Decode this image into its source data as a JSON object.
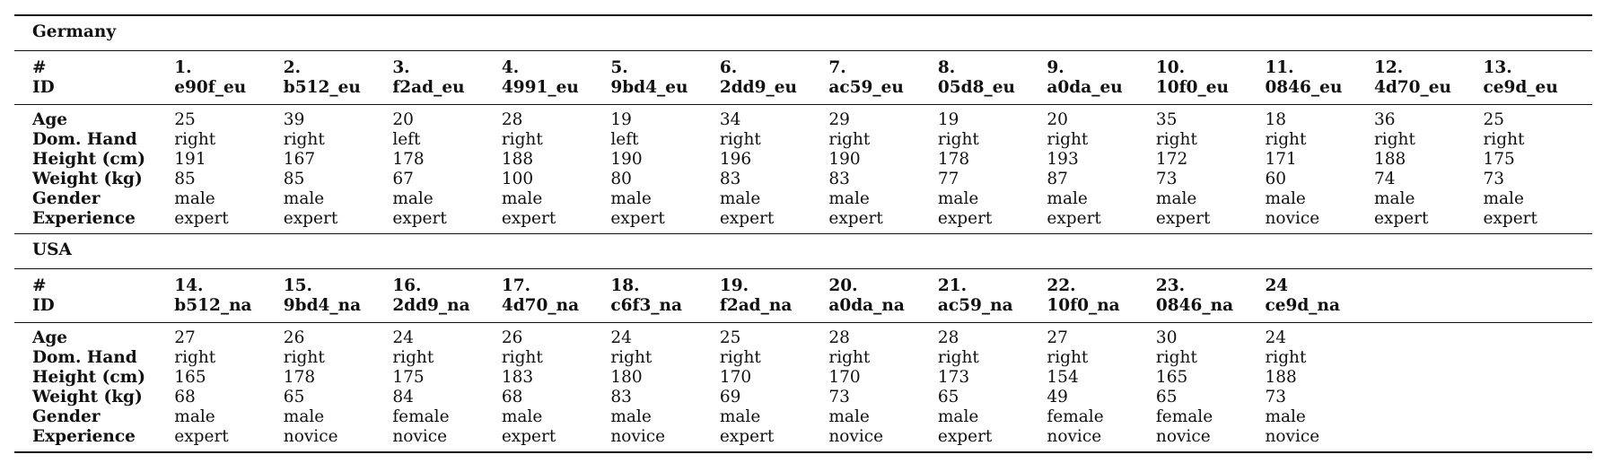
{
  "row_labels": {
    "number": "#",
    "id": "ID",
    "age": "Age",
    "dom_hand": "Dom. Hand",
    "height": "Height (cm)",
    "weight": "Weight (kg)",
    "gender": "Gender",
    "experience": "Experience"
  },
  "sections": [
    {
      "title": "Germany",
      "participants": [
        {
          "num": "1.",
          "id": "e90f_eu",
          "age": "25",
          "hand": "right",
          "height": "191",
          "weight": "85",
          "gender": "male",
          "experience": "expert"
        },
        {
          "num": "2.",
          "id": "b512_eu",
          "age": "39",
          "hand": "right",
          "height": "167",
          "weight": "85",
          "gender": "male",
          "experience": "expert"
        },
        {
          "num": "3.",
          "id": "f2ad_eu",
          "age": "20",
          "hand": "left",
          "height": "178",
          "weight": "67",
          "gender": "male",
          "experience": "expert"
        },
        {
          "num": "4.",
          "id": "4991_eu",
          "age": "28",
          "hand": "right",
          "height": "188",
          "weight": "100",
          "gender": "male",
          "experience": "expert"
        },
        {
          "num": "5.",
          "id": "9bd4_eu",
          "age": "19",
          "hand": "left",
          "height": "190",
          "weight": "80",
          "gender": "male",
          "experience": "expert"
        },
        {
          "num": "6.",
          "id": "2dd9_eu",
          "age": "34",
          "hand": "right",
          "height": "196",
          "weight": "83",
          "gender": "male",
          "experience": "expert"
        },
        {
          "num": "7.",
          "id": "ac59_eu",
          "age": "29",
          "hand": "right",
          "height": "190",
          "weight": "83",
          "gender": "male",
          "experience": "expert"
        },
        {
          "num": "8.",
          "id": "05d8_eu",
          "age": "19",
          "hand": "right",
          "height": "178",
          "weight": "77",
          "gender": "male",
          "experience": "expert"
        },
        {
          "num": "9.",
          "id": "a0da_eu",
          "age": "20",
          "hand": "right",
          "height": "193",
          "weight": "87",
          "gender": "male",
          "experience": "expert"
        },
        {
          "num": "10.",
          "id": "10f0_eu",
          "age": "35",
          "hand": "right",
          "height": "172",
          "weight": "73",
          "gender": "male",
          "experience": "expert"
        },
        {
          "num": "11.",
          "id": "0846_eu",
          "age": "18",
          "hand": "right",
          "height": "171",
          "weight": "60",
          "gender": "male",
          "experience": "novice"
        },
        {
          "num": "12.",
          "id": "4d70_eu",
          "age": "36",
          "hand": "right",
          "height": "188",
          "weight": "74",
          "gender": "male",
          "experience": "expert"
        },
        {
          "num": "13.",
          "id": "ce9d_eu",
          "age": "25",
          "hand": "right",
          "height": "175",
          "weight": "73",
          "gender": "male",
          "experience": "expert"
        }
      ]
    },
    {
      "title": "USA",
      "participants": [
        {
          "num": "14.",
          "id": "b512_na",
          "age": "27",
          "hand": "right",
          "height": "165",
          "weight": "68",
          "gender": "male",
          "experience": "expert"
        },
        {
          "num": "15.",
          "id": "9bd4_na",
          "age": "26",
          "hand": "right",
          "height": "178",
          "weight": "65",
          "gender": "male",
          "experience": "novice"
        },
        {
          "num": "16.",
          "id": "2dd9_na",
          "age": "24",
          "hand": "right",
          "height": "175",
          "weight": "84",
          "gender": "female",
          "experience": "novice"
        },
        {
          "num": "17.",
          "id": "4d70_na",
          "age": "26",
          "hand": "right",
          "height": "183",
          "weight": "68",
          "gender": "male",
          "experience": "expert"
        },
        {
          "num": "18.",
          "id": "c6f3_na",
          "age": "24",
          "hand": "right",
          "height": "180",
          "weight": "83",
          "gender": "male",
          "experience": "novice"
        },
        {
          "num": "19.",
          "id": "f2ad_na",
          "age": "25",
          "hand": "right",
          "height": "170",
          "weight": "69",
          "gender": "male",
          "experience": "expert"
        },
        {
          "num": "20.",
          "id": "a0da_na",
          "age": "28",
          "hand": "right",
          "height": "170",
          "weight": "73",
          "gender": "male",
          "experience": "novice"
        },
        {
          "num": "21.",
          "id": "ac59_na",
          "age": "28",
          "hand": "right",
          "height": "173",
          "weight": "65",
          "gender": "male",
          "experience": "expert"
        },
        {
          "num": "22.",
          "id": "10f0_na",
          "age": "27",
          "hand": "right",
          "height": "154",
          "weight": "49",
          "gender": "female",
          "experience": "novice"
        },
        {
          "num": "23.",
          "id": "0846_na",
          "age": "30",
          "hand": "right",
          "height": "165",
          "weight": "65",
          "gender": "female",
          "experience": "novice"
        },
        {
          "num": "24",
          "id": "ce9d_na",
          "age": "24",
          "hand": "right",
          "height": "188",
          "weight": "73",
          "gender": "male",
          "experience": "novice"
        }
      ]
    }
  ]
}
